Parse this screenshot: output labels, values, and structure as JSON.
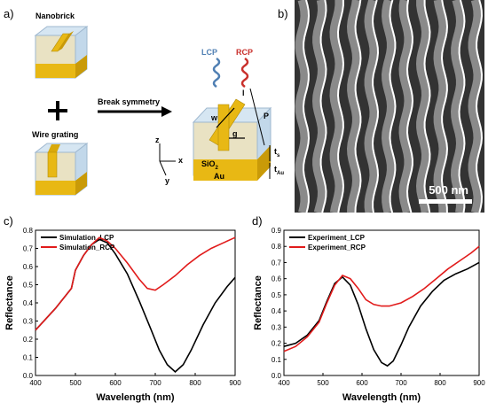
{
  "panels": {
    "a": "a)",
    "b": "b)",
    "c": "c)",
    "d": "d)"
  },
  "schematic": {
    "nanobrick": "Nanobrick",
    "wire_grating": "Wire grating",
    "plus": "+",
    "break_symmetry": "Break symmetry",
    "lcp": "LCP",
    "rcp": "RCP",
    "w": "w",
    "l": "l",
    "g": "g",
    "p": "P",
    "ts": "t",
    "ts_sub": "s",
    "tau": "t",
    "tau_sub": "Au",
    "sio2": "SiO",
    "sio2_sub": "2",
    "au": "Au",
    "axis_z": "z",
    "axis_x": "x",
    "axis_y": "y",
    "colors": {
      "gold": "#e8b814",
      "gold_dark": "#c99a08",
      "glass": "#cfe2ef",
      "lcp": "#4f7fb3",
      "rcp": "#c9302c"
    }
  },
  "sem": {
    "scale_label": "500 nm"
  },
  "chart_data": [
    {
      "type": "line",
      "panel": "c)",
      "xlabel": "Wavelength (nm)",
      "ylabel": "Reflectance",
      "xlim": [
        400,
        900
      ],
      "ylim": [
        0.0,
        0.8
      ],
      "xticks": [
        400,
        500,
        600,
        700,
        800,
        900
      ],
      "yticks": [
        0.0,
        0.1,
        0.2,
        0.3,
        0.4,
        0.5,
        0.6,
        0.7,
        0.8
      ],
      "legend_position": "top-left",
      "series": [
        {
          "name": "Simulation_LCP",
          "color": "#000000",
          "x": [
            400,
            450,
            490,
            500,
            520,
            540,
            560,
            580,
            600,
            630,
            660,
            690,
            710,
            730,
            750,
            770,
            790,
            820,
            850,
            880,
            900
          ],
          "y": [
            0.25,
            0.37,
            0.48,
            0.58,
            0.66,
            0.72,
            0.75,
            0.73,
            0.67,
            0.56,
            0.41,
            0.25,
            0.14,
            0.06,
            0.02,
            0.06,
            0.14,
            0.28,
            0.4,
            0.49,
            0.54
          ]
        },
        {
          "name": "Simulation_RCP",
          "color": "#e11b1b",
          "x": [
            400,
            450,
            490,
            500,
            520,
            540,
            560,
            580,
            600,
            630,
            660,
            680,
            700,
            720,
            750,
            780,
            810,
            840,
            870,
            900
          ],
          "y": [
            0.25,
            0.37,
            0.48,
            0.58,
            0.66,
            0.72,
            0.76,
            0.74,
            0.7,
            0.62,
            0.53,
            0.48,
            0.47,
            0.5,
            0.55,
            0.61,
            0.66,
            0.7,
            0.73,
            0.76
          ]
        }
      ]
    },
    {
      "type": "line",
      "panel": "d)",
      "xlabel": "Wavelength (nm)",
      "ylabel": "Reflectance",
      "xlim": [
        400,
        900
      ],
      "ylim": [
        0.0,
        0.9
      ],
      "xticks": [
        400,
        500,
        600,
        700,
        800,
        900
      ],
      "yticks": [
        0.0,
        0.1,
        0.2,
        0.3,
        0.4,
        0.5,
        0.6,
        0.7,
        0.8,
        0.9
      ],
      "legend_position": "top-left",
      "series": [
        {
          "name": "Experiment_LCP",
          "color": "#000000",
          "x": [
            400,
            430,
            460,
            490,
            510,
            530,
            550,
            570,
            590,
            610,
            630,
            650,
            665,
            680,
            700,
            720,
            750,
            780,
            810,
            840,
            870,
            900
          ],
          "y": [
            0.18,
            0.2,
            0.25,
            0.34,
            0.46,
            0.57,
            0.61,
            0.56,
            0.44,
            0.29,
            0.16,
            0.08,
            0.06,
            0.09,
            0.19,
            0.3,
            0.43,
            0.52,
            0.59,
            0.63,
            0.66,
            0.7
          ]
        },
        {
          "name": "Experiment_RCP",
          "color": "#e11b1b",
          "x": [
            400,
            430,
            460,
            490,
            510,
            530,
            550,
            570,
            590,
            610,
            630,
            650,
            670,
            700,
            730,
            760,
            790,
            820,
            850,
            880,
            900
          ],
          "y": [
            0.15,
            0.18,
            0.24,
            0.33,
            0.45,
            0.56,
            0.62,
            0.6,
            0.54,
            0.47,
            0.44,
            0.43,
            0.43,
            0.45,
            0.49,
            0.54,
            0.6,
            0.66,
            0.71,
            0.76,
            0.8
          ]
        }
      ]
    }
  ]
}
